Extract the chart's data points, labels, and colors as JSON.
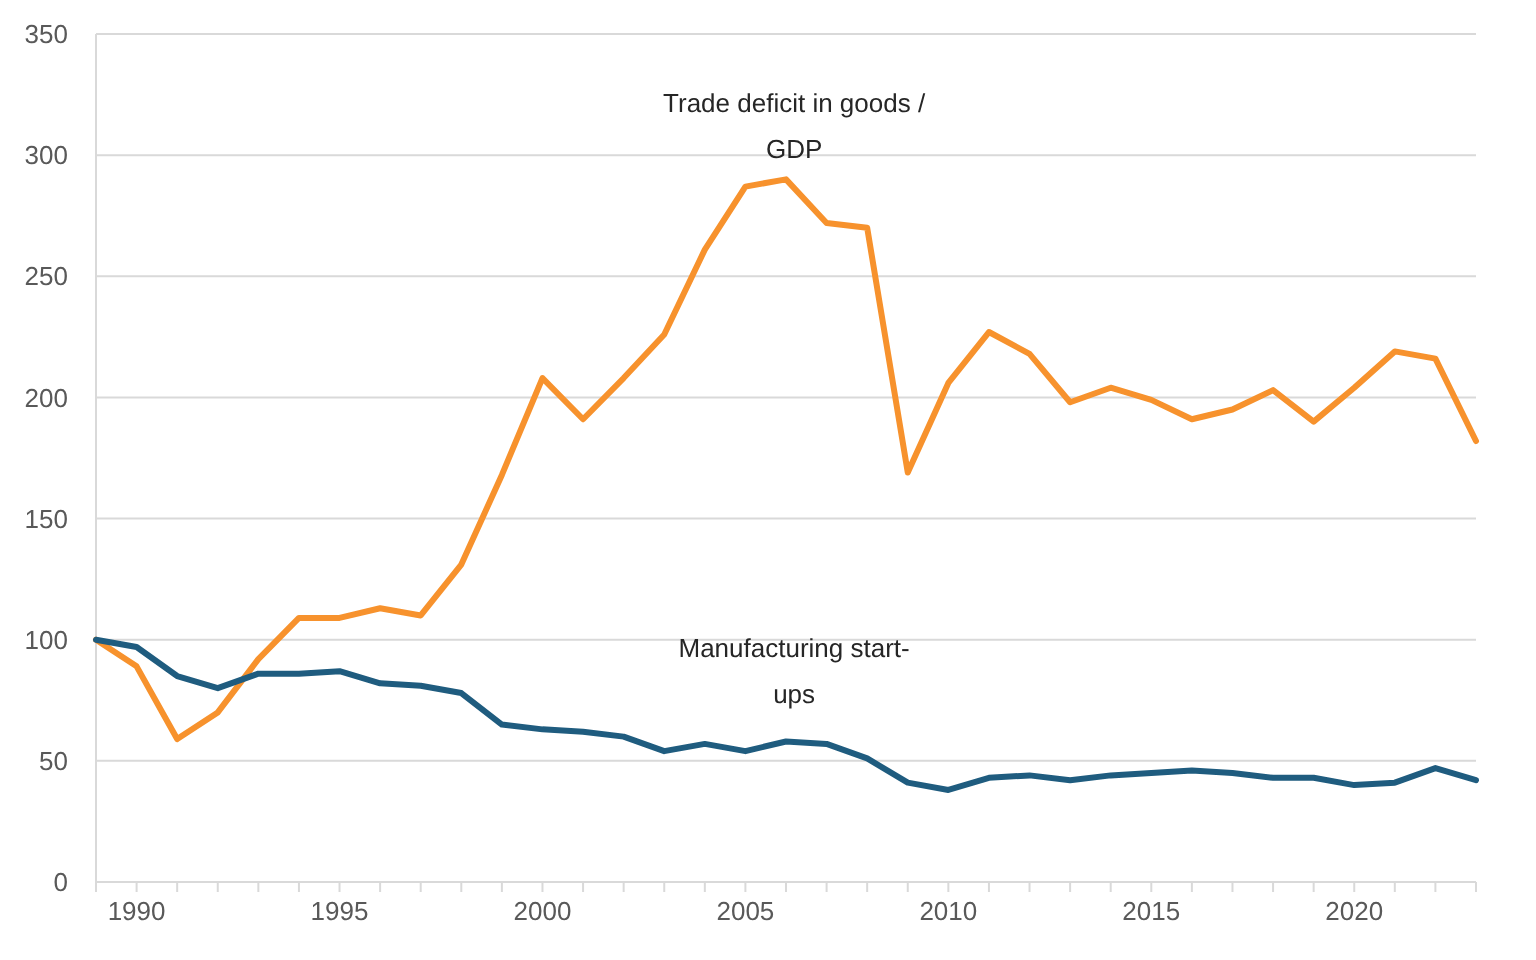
{
  "chart_data": {
    "type": "line",
    "x": [
      1989,
      1990,
      1991,
      1992,
      1993,
      1994,
      1995,
      1996,
      1997,
      1998,
      1999,
      2000,
      2001,
      2002,
      2003,
      2004,
      2005,
      2006,
      2007,
      2008,
      2009,
      2010,
      2011,
      2012,
      2013,
      2014,
      2015,
      2016,
      2017,
      2018,
      2019,
      2020,
      2021,
      2022,
      2023
    ],
    "series": [
      {
        "name": "Trade deficit in goods / GDP",
        "color": "#f7922d",
        "values": [
          100,
          89,
          59,
          70,
          92,
          109,
          109,
          113,
          110,
          131,
          168,
          208,
          191,
          208,
          226,
          261,
          287,
          290,
          272,
          270,
          169,
          206,
          227,
          218,
          198,
          204,
          199,
          191,
          195,
          203,
          190,
          204,
          219,
          216,
          182
        ]
      },
      {
        "name": "Manufacturing start-ups",
        "color": "#1f5c7f",
        "values": [
          100,
          97,
          85,
          80,
          86,
          86,
          87,
          82,
          81,
          78,
          65,
          63,
          62,
          60,
          54,
          57,
          54,
          58,
          57,
          51,
          41,
          38,
          43,
          44,
          42,
          44,
          45,
          46,
          45,
          43,
          43,
          40,
          41,
          47,
          42
        ]
      }
    ],
    "xlim": [
      1989,
      2023
    ],
    "xticks": [
      {
        "value": 1989,
        "label": null
      },
      1990,
      {
        "value": 1991,
        "label": null
      },
      {
        "value": 1992,
        "label": null
      },
      {
        "value": 1993,
        "label": null
      },
      {
        "value": 1994,
        "label": null
      },
      1995,
      {
        "value": 1996,
        "label": null
      },
      {
        "value": 1997,
        "label": null
      },
      {
        "value": 1998,
        "label": null
      },
      {
        "value": 1999,
        "label": null
      },
      2000,
      {
        "value": 2001,
        "label": null
      },
      {
        "value": 2002,
        "label": null
      },
      {
        "value": 2003,
        "label": null
      },
      {
        "value": 2004,
        "label": null
      },
      2005,
      {
        "value": 2006,
        "label": null
      },
      {
        "value": 2007,
        "label": null
      },
      {
        "value": 2008,
        "label": null
      },
      {
        "value": 2009,
        "label": null
      },
      2010,
      {
        "value": 2011,
        "label": null
      },
      {
        "value": 2012,
        "label": null
      },
      {
        "value": 2013,
        "label": null
      },
      {
        "value": 2014,
        "label": null
      },
      2015,
      {
        "value": 2016,
        "label": null
      },
      {
        "value": 2017,
        "label": null
      },
      {
        "value": 2018,
        "label": null
      },
      {
        "value": 2019,
        "label": null
      },
      2020,
      {
        "value": 2021,
        "label": null
      },
      {
        "value": 2022,
        "label": null
      },
      {
        "value": 2023,
        "label": null
      }
    ],
    "ylim": [
      0,
      350
    ],
    "yticks": [
      0,
      50,
      100,
      150,
      200,
      250,
      300,
      350
    ],
    "grid": "y",
    "marker": "none",
    "line_style": "solid"
  }
}
